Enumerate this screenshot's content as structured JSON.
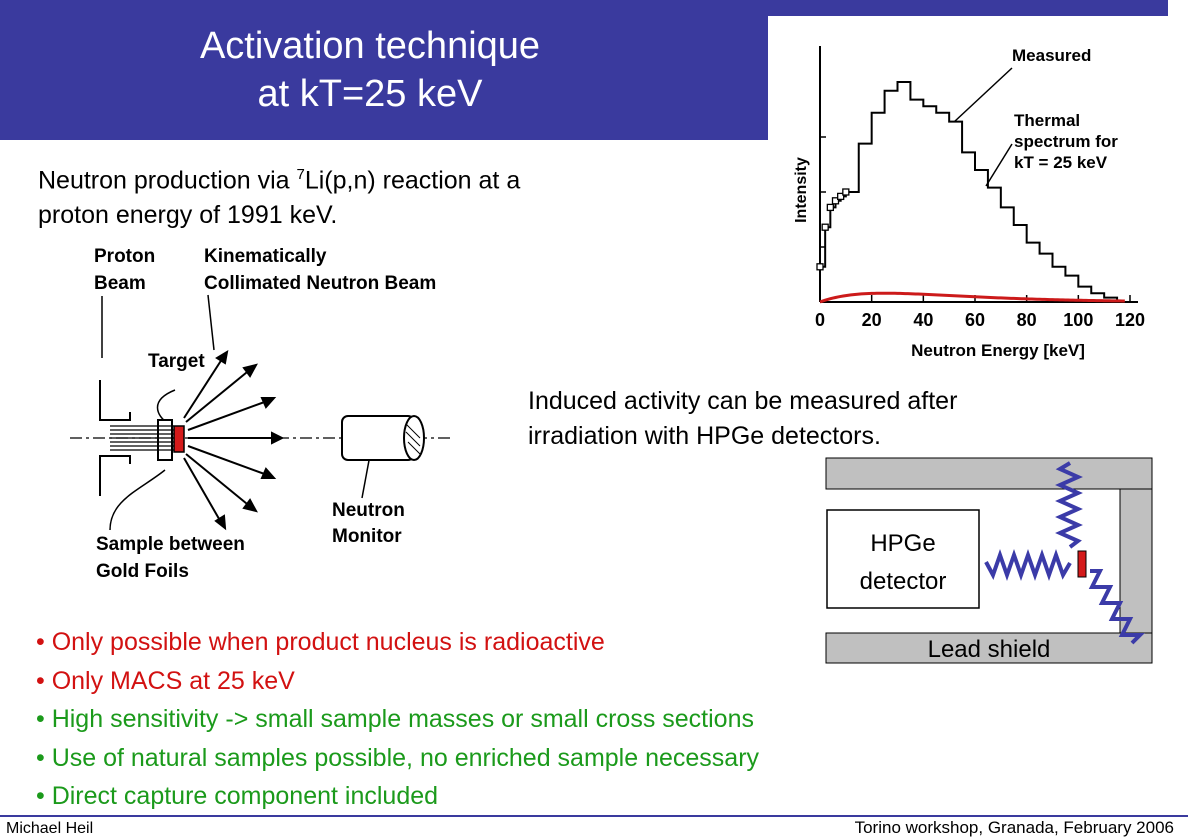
{
  "title": {
    "line1": "Activation technique",
    "line2": "at kT=25 keV"
  },
  "intro": {
    "before_sup": "Neutron  production via ",
    "sup": "7",
    "after_sup": "Li(p,n) reaction at a",
    "line2": "proton energy of 1991 keV."
  },
  "induced": {
    "line1": "Induced activity can be measured after",
    "line2": "irradiation with HPGe detectors."
  },
  "setup_labels": {
    "proton_beam": [
      "Proton",
      "Beam"
    ],
    "kinematic": [
      "Kinematically",
      "Collimated Neutron Beam"
    ],
    "target": "Target",
    "neutron_monitor": [
      "Neutron",
      "Monitor"
    ],
    "sample": [
      "Sample between",
      "Gold Foils"
    ]
  },
  "detector": {
    "hpge": [
      "HPGe",
      "detector"
    ],
    "lead_shield": "Lead shield"
  },
  "bullets": [
    {
      "text": "Only possible when product nucleus is radioactive",
      "color": "red"
    },
    {
      "text": "Only MACS at 25 keV",
      "color": "red"
    },
    {
      "text": "High sensitivity -> small sample masses or small cross sections",
      "color": "green"
    },
    {
      "text": "Use of natural samples possible, no enriched sample necessary",
      "color": "green"
    },
    {
      "text": "Direct capture component included",
      "color": "green"
    }
  ],
  "footer": {
    "left": "Michael Heil",
    "right": "Torino workshop, Granada,  February 2006"
  },
  "chart_data": {
    "type": "line",
    "xlabel": "Neutron Energy [keV]",
    "ylabel": "Intensity",
    "xlim": [
      0,
      120
    ],
    "x_ticks": [
      "0",
      "20",
      "40",
      "60",
      "80",
      "100",
      "120"
    ],
    "series": [
      {
        "name": "Measured",
        "style": "step",
        "x": [
          0,
          2,
          4,
          6,
          8,
          10,
          15,
          20,
          25,
          30,
          35,
          40,
          45,
          50,
          55,
          60,
          65,
          70,
          75,
          80,
          85,
          90,
          95,
          100,
          105,
          110,
          115
        ],
        "y": [
          0.16,
          0.34,
          0.43,
          0.46,
          0.48,
          0.5,
          0.72,
          0.86,
          0.96,
          1.0,
          0.92,
          0.89,
          0.86,
          0.82,
          0.68,
          0.6,
          0.52,
          0.43,
          0.35,
          0.27,
          0.22,
          0.16,
          0.12,
          0.07,
          0.04,
          0.02,
          0.0
        ]
      },
      {
        "name": "Thermal spectrum for kT = 25 keV",
        "style": "curve",
        "color": "#cc1a1a",
        "kT": 25
      }
    ]
  }
}
